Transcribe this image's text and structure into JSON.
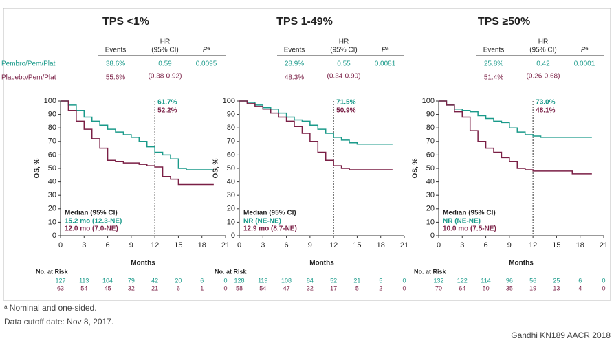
{
  "row_labels": [
    {
      "text": "Pembro/Pem/Plat",
      "color": "#1a9a8a"
    },
    {
      "text": "Placebo/Pem/Plat",
      "color": "#7a1f45"
    }
  ],
  "footnotes": {
    "note": "ᵃ Nominal and one-sided.",
    "cutoff": "Data cutoff date: Nov 8, 2017.",
    "source": "Gandhi KN189 AACR 2018"
  },
  "chart_data": [
    {
      "type": "line",
      "title": "TPS <1%",
      "table": {
        "headers": [
          "Events",
          "HR",
          "(95% CI)",
          "Pᵃ"
        ],
        "events": [
          "38.6%",
          "55.6%"
        ],
        "hr": "0.59",
        "ci": "(0.38-0.92)",
        "p": "0.0095"
      },
      "x_label": "Months",
      "y_label": "OS, %",
      "xlim": [
        0,
        21
      ],
      "ylim": [
        0,
        100
      ],
      "xticks": [
        0,
        3,
        6,
        9,
        12,
        15,
        18,
        21
      ],
      "yticks": [
        0,
        10,
        20,
        30,
        40,
        50,
        60,
        70,
        80,
        90,
        100
      ],
      "reference_x": 12,
      "annotations": [
        "61.7%",
        "52.2%"
      ],
      "median": {
        "title": "Median (95% CI)",
        "lines": [
          "15.2 mo (12.3-NE)",
          "12.0 mo (7.0-NE)"
        ]
      },
      "x": [
        0,
        1,
        2,
        3,
        4,
        5,
        6,
        7,
        8,
        9,
        10,
        11,
        12,
        13,
        14,
        15,
        16,
        17,
        18,
        19
      ],
      "series": [
        {
          "color": "#1a9a8a",
          "values": [
            100,
            97,
            93,
            88,
            85,
            82,
            79,
            77,
            75,
            73,
            70,
            66,
            62,
            60,
            57,
            50,
            49,
            49,
            49,
            49
          ]
        },
        {
          "color": "#7a1f45",
          "values": [
            100,
            93,
            85,
            79,
            72,
            65,
            56,
            55,
            54,
            54,
            53,
            52,
            51,
            44,
            42,
            38,
            38,
            38,
            38,
            38
          ]
        }
      ],
      "at_risk": {
        "label": "No. at Risk",
        "rows": [
          [
            127,
            113,
            104,
            79,
            42,
            20,
            6,
            0
          ],
          [
            63,
            54,
            45,
            32,
            21,
            6,
            1,
            0
          ]
        ]
      }
    },
    {
      "type": "line",
      "title": "TPS 1-49%",
      "table": {
        "headers": [
          "Events",
          "HR",
          "(95% CI)",
          "Pᵃ"
        ],
        "events": [
          "28.9%",
          "48.3%"
        ],
        "hr": "0.55",
        "ci": "(0.34-0.90)",
        "p": "0.0081"
      },
      "x_label": "Months",
      "y_label": "OS, %",
      "xlim": [
        0,
        21
      ],
      "ylim": [
        0,
        100
      ],
      "xticks": [
        0,
        3,
        6,
        9,
        12,
        15,
        18,
        21
      ],
      "yticks": [
        0,
        10,
        20,
        30,
        40,
        50,
        60,
        70,
        80,
        90,
        100
      ],
      "reference_x": 12,
      "annotations": [
        "71.5%",
        "50.9%"
      ],
      "median": {
        "title": "Median (95% CI)",
        "lines": [
          "NR (NE-NE)",
          "12.9 mo (8.7-NE)"
        ]
      },
      "x": [
        0,
        1,
        2,
        3,
        4,
        5,
        6,
        7,
        8,
        9,
        10,
        11,
        12,
        13,
        14,
        15,
        16,
        17,
        18,
        19
      ],
      "series": [
        {
          "color": "#1a9a8a",
          "values": [
            100,
            99,
            97,
            95,
            94,
            91,
            88,
            86,
            85,
            82,
            79,
            76,
            73,
            71,
            69,
            68,
            68,
            68,
            68,
            68
          ]
        },
        {
          "color": "#7a1f45",
          "values": [
            100,
            98,
            96,
            94,
            91,
            88,
            85,
            81,
            76,
            70,
            62,
            56,
            52,
            50,
            49,
            49,
            49,
            49,
            49,
            49
          ]
        }
      ],
      "at_risk": {
        "label": "No. at Risk",
        "rows": [
          [
            128,
            119,
            108,
            84,
            52,
            21,
            5,
            0
          ],
          [
            58,
            54,
            47,
            32,
            17,
            5,
            2,
            0
          ]
        ]
      }
    },
    {
      "type": "line",
      "title": "TPS ≥50%",
      "table": {
        "headers": [
          "Events",
          "HR",
          "(95% CI)",
          "Pᵃ"
        ],
        "events": [
          "25.8%",
          "51.4%"
        ],
        "hr": "0.42",
        "ci": "(0.26-0.68)",
        "p": "0.0001"
      },
      "x_label": "Months",
      "y_label": "OS, %",
      "xlim": [
        0,
        21
      ],
      "ylim": [
        0,
        100
      ],
      "xticks": [
        0,
        3,
        6,
        9,
        12,
        15,
        18,
        21
      ],
      "yticks": [
        0,
        10,
        20,
        30,
        40,
        50,
        60,
        70,
        80,
        90,
        100
      ],
      "reference_x": 12,
      "annotations": [
        "73.0%",
        "48.1%"
      ],
      "median": {
        "title": "Median (95% CI)",
        "lines": [
          "NR (NE-NE)",
          "10.0 mo (7.5-NE)"
        ]
      },
      "x": [
        0,
        1,
        2,
        3,
        4,
        5,
        6,
        7,
        8,
        9,
        10,
        11,
        12,
        13,
        14,
        15,
        16,
        17,
        18,
        19
      ],
      "series": [
        {
          "color": "#1a9a8a",
          "values": [
            100,
            97,
            94,
            93,
            92,
            89,
            87,
            85,
            84,
            80,
            77,
            75,
            74,
            73,
            73,
            73,
            73,
            73,
            73,
            73
          ]
        },
        {
          "color": "#7a1f45",
          "values": [
            100,
            97,
            92,
            88,
            78,
            70,
            65,
            62,
            58,
            55,
            50,
            49,
            48,
            48,
            48,
            48,
            48,
            46,
            46,
            46
          ]
        }
      ],
      "at_risk": {
        "label": "No. at Risk",
        "rows": [
          [
            132,
            122,
            114,
            96,
            56,
            25,
            6,
            0
          ],
          [
            70,
            64,
            50,
            35,
            19,
            13,
            4,
            0
          ]
        ]
      }
    }
  ]
}
